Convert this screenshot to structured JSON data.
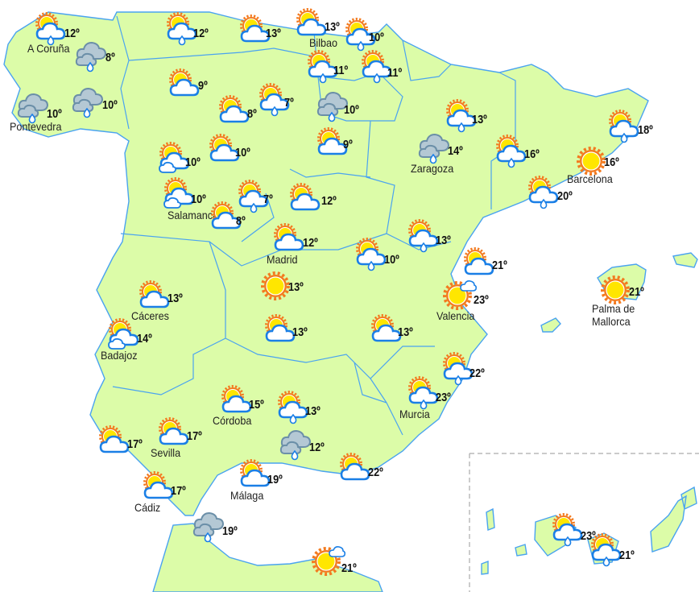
{
  "map": {
    "colors": {
      "land": "#dcfca8",
      "border": "#4aa3f0",
      "sun": "#ffe600",
      "sun_ray": "#f37a1f",
      "cloud_fill": "#ffffff",
      "cloud_stroke": "#1a7fe6",
      "grey_cloud": "#b4c8d4",
      "grey_stroke": "#6b8fa8"
    },
    "stations": [
      {
        "temp": "12º",
        "label": "A Coruña",
        "icon": "sun-cloud-rain"
      },
      {
        "temp": "8º",
        "label": "",
        "icon": "grey-cloud-rain"
      },
      {
        "temp": "10º",
        "label": "Pontevedra",
        "icon": "grey-cloud-rain"
      },
      {
        "temp": "10º",
        "label": "",
        "icon": "grey-cloud-rain"
      },
      {
        "temp": "12º",
        "label": "",
        "icon": "sun-cloud-rain"
      },
      {
        "temp": "13º",
        "label": "",
        "icon": "sun-cloud"
      },
      {
        "temp": "13º",
        "label": "Bilbao",
        "icon": "sun-cloud"
      },
      {
        "temp": "10º",
        "label": "",
        "icon": "sun-cloud-rain"
      },
      {
        "temp": "11º",
        "label": "",
        "icon": "sun-cloud-rain"
      },
      {
        "temp": "11º",
        "label": "",
        "icon": "sun-cloud-rain"
      },
      {
        "temp": "9º",
        "label": "",
        "icon": "sun-cloud"
      },
      {
        "temp": "8º",
        "label": "",
        "icon": "sun-cloud"
      },
      {
        "temp": "7º",
        "label": "",
        "icon": "sun-cloud-rain"
      },
      {
        "temp": "10º",
        "label": "",
        "icon": "grey-cloud-rain"
      },
      {
        "temp": "9º",
        "label": "",
        "icon": "sun-cloud"
      },
      {
        "temp": "10º",
        "label": "",
        "icon": "sun-cloud"
      },
      {
        "temp": "10º",
        "label": "",
        "icon": "sun-two-clouds"
      },
      {
        "temp": "10º",
        "label": "Salamanca",
        "icon": "sun-two-clouds"
      },
      {
        "temp": "7º",
        "label": "",
        "icon": "sun-cloud-rain"
      },
      {
        "temp": "8º",
        "label": "",
        "icon": "sun-cloud"
      },
      {
        "temp": "12º",
        "label": "",
        "icon": "sun-cloud"
      },
      {
        "temp": "12º",
        "label": "Madrid",
        "icon": "sun-cloud"
      },
      {
        "temp": "10º",
        "label": "",
        "icon": "sun-cloud-rain"
      },
      {
        "temp": "13º",
        "label": "",
        "icon": "sun-cloud-rain"
      },
      {
        "temp": "14º",
        "label": "Zaragoza",
        "icon": "grey-cloud-rain"
      },
      {
        "temp": "13º",
        "label": "",
        "icon": "sun-cloud-rain"
      },
      {
        "temp": "16º",
        "label": "",
        "icon": "sun-cloud-rain"
      },
      {
        "temp": "18º",
        "label": "",
        "icon": "sun-cloud-rain"
      },
      {
        "temp": "16º",
        "label": "Barcelona",
        "icon": "sun"
      },
      {
        "temp": "20º",
        "label": "",
        "icon": "sun-cloud-rain"
      },
      {
        "temp": "21º",
        "label": "",
        "icon": "sun-cloud"
      },
      {
        "temp": "23º",
        "label": "Valencia",
        "icon": "sun-small-cloud"
      },
      {
        "temp": "21º",
        "label": "Palma de\nMallorca",
        "icon": "sun"
      },
      {
        "temp": "13º",
        "label": "Cáceres",
        "icon": "sun-cloud"
      },
      {
        "temp": "14º",
        "label": "Badajoz",
        "icon": "sun-two-clouds"
      },
      {
        "temp": "13º",
        "label": "",
        "icon": "sun"
      },
      {
        "temp": "13º",
        "label": "",
        "icon": "sun-cloud"
      },
      {
        "temp": "13º",
        "label": "",
        "icon": "sun-cloud"
      },
      {
        "temp": "22º",
        "label": "",
        "icon": "sun-cloud-rain"
      },
      {
        "temp": "23º",
        "label": "Murcia",
        "icon": "sun-cloud-rain"
      },
      {
        "temp": "15º",
        "label": "Córdoba",
        "icon": "sun-cloud"
      },
      {
        "temp": "13º",
        "label": "",
        "icon": "sun-cloud-rain"
      },
      {
        "temp": "12º",
        "label": "",
        "icon": "grey-cloud-rain"
      },
      {
        "temp": "17º",
        "label": "",
        "icon": "sun-cloud"
      },
      {
        "temp": "17º",
        "label": "Sevilla",
        "icon": "sun-cloud"
      },
      {
        "temp": "22º",
        "label": "",
        "icon": "sun-cloud"
      },
      {
        "temp": "19º",
        "label": "Málaga",
        "icon": "sun-cloud"
      },
      {
        "temp": "17º",
        "label": "Cádiz",
        "icon": "sun-cloud"
      },
      {
        "temp": "19º",
        "label": "",
        "icon": "grey-cloud-rain"
      },
      {
        "temp": "21º",
        "label": "",
        "icon": "sun-small-cloud"
      },
      {
        "temp": "23º",
        "label": "",
        "icon": "sun-cloud-rain"
      },
      {
        "temp": "21º",
        "label": "",
        "icon": "sun-cloud-rain"
      }
    ]
  }
}
